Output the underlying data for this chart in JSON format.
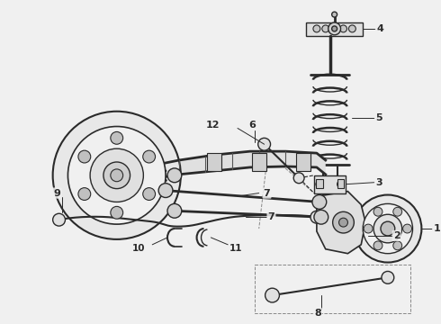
{
  "bg_color": "#f0f0f0",
  "line_color": "#2a2a2a",
  "fig_width": 4.9,
  "fig_height": 3.6,
  "dpi": 100,
  "gray_fill": "#e8e8e8",
  "dark_fill": "#555555",
  "label_fs": 8
}
